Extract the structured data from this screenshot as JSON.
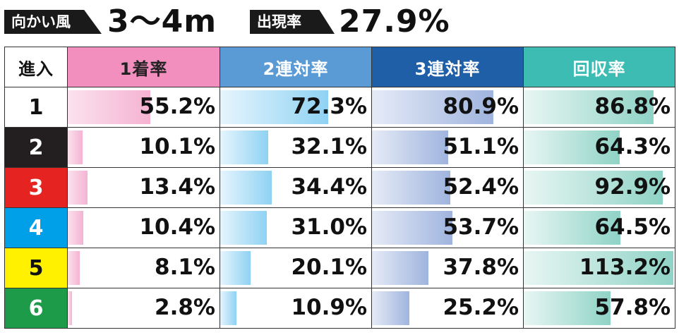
{
  "header": {
    "wind_label": "向かい風",
    "wind_value": "3～4m",
    "rate_label": "出現率",
    "rate_value": "27.9%"
  },
  "colors": {
    "lane_1": "#ffffff",
    "lane_2": "#231f20",
    "lane_3": "#e52421",
    "lane_4": "#00a0e9",
    "lane_5": "#fff100",
    "lane_6": "#1d9b48"
  },
  "chart_data": {
    "type": "table",
    "columns": [
      "進入",
      "1着率",
      "2連対率",
      "3連対率",
      "回収率"
    ],
    "rows": [
      {
        "lane": "1",
        "win": 55.2,
        "top2": 72.3,
        "top3": 80.9,
        "recovery": 86.8,
        "win_text": "55.2%",
        "top2_text": "72.3%",
        "top3_text": "80.9%",
        "recovery_text": "86.8%"
      },
      {
        "lane": "2",
        "win": 10.1,
        "top2": 32.1,
        "top3": 51.1,
        "recovery": 64.3,
        "win_text": "10.1%",
        "top2_text": "32.1%",
        "top3_text": "51.1%",
        "recovery_text": "64.3%"
      },
      {
        "lane": "3",
        "win": 13.4,
        "top2": 34.4,
        "top3": 52.4,
        "recovery": 92.9,
        "win_text": "13.4%",
        "top2_text": "34.4%",
        "top3_text": "52.4%",
        "recovery_text": "92.9%"
      },
      {
        "lane": "4",
        "win": 10.4,
        "top2": 31.0,
        "top3": 53.7,
        "recovery": 64.5,
        "win_text": "10.4%",
        "top2_text": "31.0%",
        "top3_text": "53.7%",
        "recovery_text": "64.5%"
      },
      {
        "lane": "5",
        "win": 8.1,
        "top2": 20.1,
        "top3": 37.8,
        "recovery": 113.2,
        "win_text": "8.1%",
        "top2_text": "20.1%",
        "top3_text": "37.8%",
        "recovery_text": "113.2%"
      },
      {
        "lane": "6",
        "win": 2.8,
        "top2": 10.9,
        "top3": 25.2,
        "recovery": 57.8,
        "win_text": "2.8%",
        "top2_text": "10.9%",
        "top3_text": "25.2%",
        "recovery_text": "57.8%"
      }
    ]
  }
}
